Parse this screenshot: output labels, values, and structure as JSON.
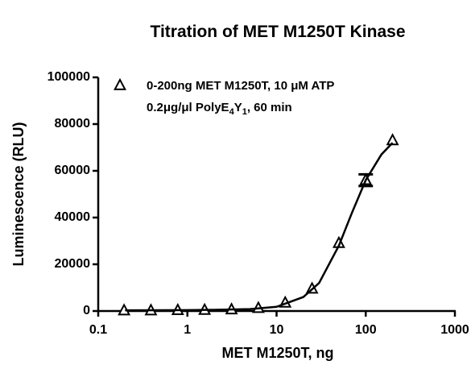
{
  "chart_data": {
    "type": "scatter",
    "title": "Titration of MET M1250T Kinase",
    "x_label": "MET M1250T, ng",
    "y_label": "Luminescence (RLU)",
    "x_scale": "log",
    "xlim": [
      0.1,
      1000
    ],
    "xticks": [
      0.1,
      1,
      10,
      100,
      1000
    ],
    "ylim": [
      0,
      100000
    ],
    "yticks": [
      0,
      20000,
      40000,
      60000,
      80000,
      100000
    ],
    "legend_note": [
      "0.2μg/μl PolyE",
      "4",
      "Y",
      "1",
      ", 60 min"
    ],
    "series": [
      {
        "name": "0-200ng MET M1250T, 10 μM ATP",
        "color": "#000000",
        "marker": "triangle",
        "x": [
          0.195,
          0.39,
          0.78,
          1.56,
          3.125,
          6.25,
          12.5,
          25,
          50,
          100,
          200
        ],
        "values": [
          200,
          200,
          300,
          400,
          600,
          1200,
          3500,
          9500,
          29000,
          56000,
          73000
        ],
        "errors": [
          null,
          null,
          null,
          null,
          null,
          null,
          null,
          null,
          null,
          2500,
          null
        ]
      },
      {
        "color": "#000000",
        "marker": "none",
        "x": [
          0.2,
          0.5,
          1,
          2,
          5,
          10,
          20,
          30,
          50,
          70,
          100,
          150,
          200
        ],
        "values": [
          300,
          350,
          400,
          500,
          800,
          1800,
          6000,
          12000,
          28000,
          42000,
          56000,
          67000,
          72000
        ]
      }
    ]
  }
}
